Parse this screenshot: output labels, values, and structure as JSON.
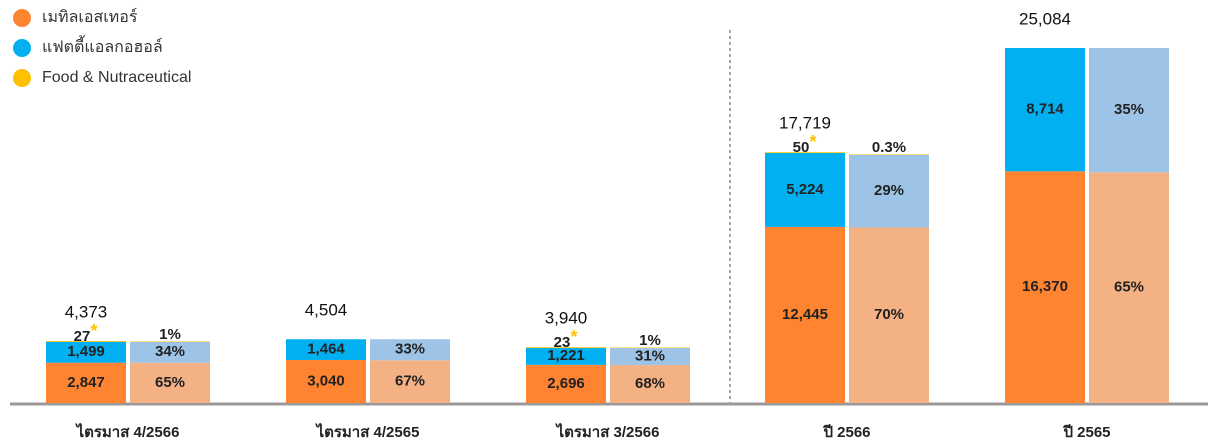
{
  "chart_data": {
    "type": "bar",
    "categories": [
      "ไตรมาส 4/2566",
      "ไตรมาส 4/2565",
      "ไตรมาส 3/2566",
      "ปี 2566",
      "ปี 2565"
    ],
    "series": [
      {
        "name": "เมทิลเอสเทอร์",
        "color": "#fe8432",
        "share_color": "#f4b183",
        "values": [
          2847,
          3040,
          2696,
          12445,
          16370
        ],
        "value_labels": [
          "2,847",
          "3,040",
          "2,696",
          "12,445",
          "16,370"
        ],
        "shares": [
          65,
          67,
          68,
          70,
          65
        ],
        "share_labels": [
          "65%",
          "67%",
          "68%",
          "70%",
          "65%"
        ]
      },
      {
        "name": "แฟตตี้แอลกอฮอล์",
        "color": "#00b0f0",
        "share_color": "#9dc3e6",
        "values": [
          1499,
          1464,
          1221,
          5224,
          8714
        ],
        "value_labels": [
          "1,499",
          "1,464",
          "1,221",
          "5,224",
          "8,714"
        ],
        "shares": [
          34,
          33,
          31,
          29,
          35
        ],
        "share_labels": [
          "34%",
          "33%",
          "31%",
          "29%",
          "35%"
        ]
      },
      {
        "name": "Food & Nutraceutical",
        "color": "#ffc000",
        "share_color": "#ffd966",
        "values": [
          27,
          null,
          23,
          50,
          null
        ],
        "shares": [
          1,
          null,
          1,
          0.3,
          null
        ],
        "share_labels": [
          "1%",
          null,
          "1%",
          "0.3%",
          null
        ]
      }
    ],
    "totals": [
      4373,
      4504,
      3940,
      17719,
      25084
    ],
    "total_labels": [
      "4,373",
      "4,504",
      "3,940",
      "17,719",
      "25,084"
    ],
    "note_marker": "*"
  }
}
